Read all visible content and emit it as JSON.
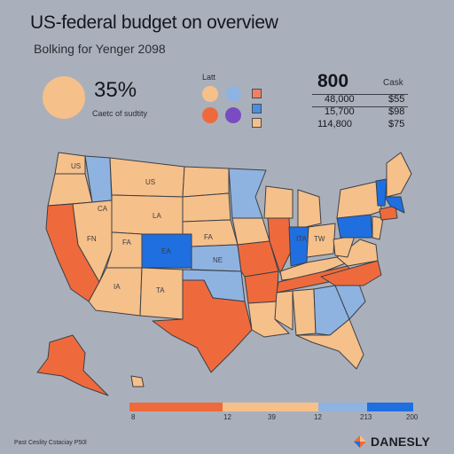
{
  "header": {
    "title": "US-federal budget on overview",
    "subtitle": "Bolking for Yenger 2098"
  },
  "stat": {
    "value": "35%",
    "caption": "Caetc of sudtity"
  },
  "legend": {
    "heading": "Latt",
    "swatches": [
      "#f6c08a",
      "#8fb3e0",
      "#ee6a3c",
      "#7a4cc2"
    ],
    "squares": [
      "#f08060",
      "#4a8ee0",
      "#f6c08a"
    ]
  },
  "numbers": {
    "big": "800",
    "column_heading": "Cask",
    "rows": [
      {
        "value": "48,000",
        "amount": "$55"
      },
      {
        "value": "15,700",
        "amount": "$98"
      },
      {
        "value": "114,800",
        "amount": "$75"
      }
    ]
  },
  "colors": {
    "background": "#aab0bb",
    "low": "#f6c08a",
    "high": "#ee6a3c",
    "mid_blue": "#8fb3e0",
    "strong_blue": "#1f6fe0"
  },
  "map": {
    "state_labels": [
      "US",
      "US",
      "CA",
      "LA",
      "FN",
      "FA",
      "EA",
      "FA",
      "NE",
      "IA",
      "TA",
      "ITA",
      "TW"
    ],
    "highlight_label": "TA"
  },
  "scale": {
    "ticks": [
      "8",
      "12",
      "39",
      "12",
      "213",
      "200"
    ]
  },
  "footer": {
    "source": "Past Ceslity Cstaciay P50l",
    "brand": "DANESLY"
  }
}
